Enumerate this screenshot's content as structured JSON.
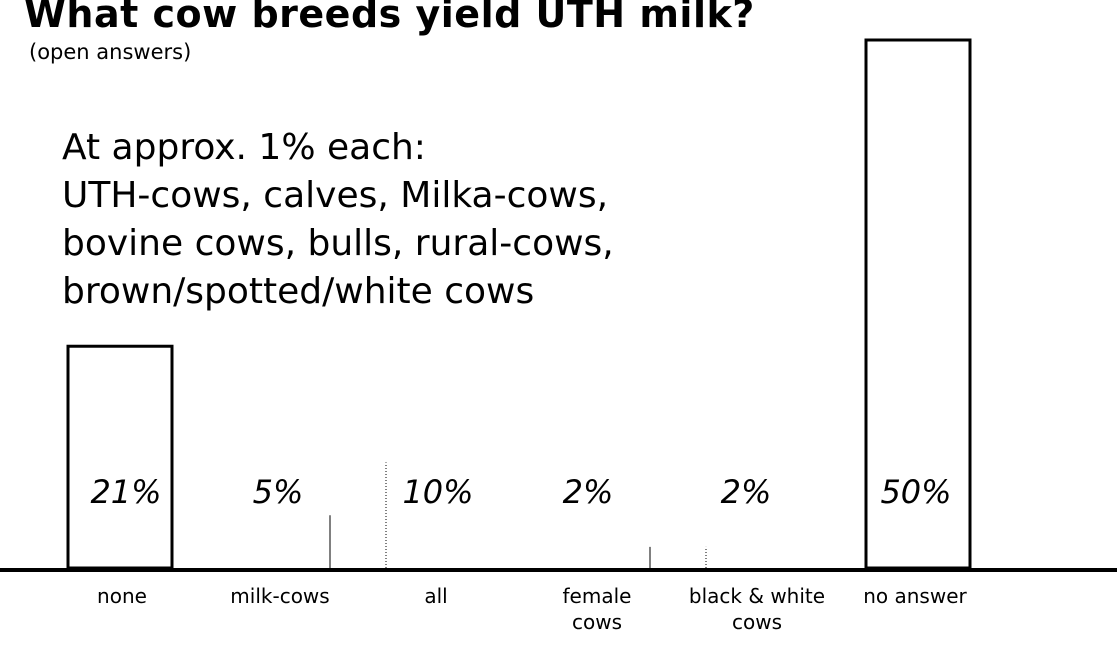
{
  "chart_data": {
    "type": "bar",
    "title": "What cow breeds yield UTH milk?",
    "subtitle": "(open answers)",
    "annotation": [
      "At approx. 1% each:",
      "UTH-cows, calves, Milka-cows,",
      "bovine cows, bulls, rural-cows,",
      "brown/spotted/white cows"
    ],
    "categories": [
      [
        "none"
      ],
      [
        "milk-cows"
      ],
      [
        "all"
      ],
      [
        "female",
        "cows"
      ],
      [
        "black & white",
        "cows"
      ],
      [
        "no answer"
      ]
    ],
    "values": [
      21,
      5,
      10,
      2,
      2,
      50
    ],
    "value_labels": [
      "21%",
      "5%",
      "10%",
      "2%",
      "2%",
      "50%"
    ],
    "ylim": [
      0,
      50
    ],
    "xlabel": "",
    "ylabel": "",
    "grid": false,
    "legend": "none"
  }
}
